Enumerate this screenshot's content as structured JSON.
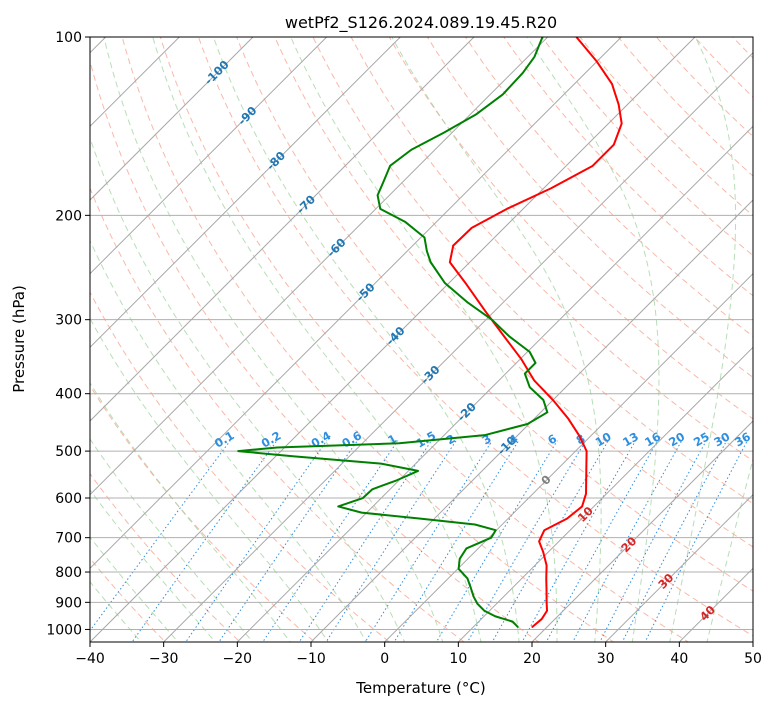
{
  "chart_data": {
    "type": "line",
    "title": "wetPf2_S126.2024.089.19.45.R20",
    "xlabel": "Temperature (°C)",
    "ylabel": "Pressure (hPa)",
    "xlim": [
      -40,
      50
    ],
    "ylim": [
      1050,
      100
    ],
    "y_scale": "log",
    "skew_deg": 45,
    "grid": true,
    "x_ticks": [
      -40,
      -30,
      -20,
      -10,
      0,
      10,
      20,
      30,
      40,
      50
    ],
    "y_ticks": [
      100,
      200,
      300,
      400,
      500,
      600,
      700,
      800,
      900,
      1000
    ],
    "isotherm_labels": [
      {
        "value": -100,
        "label": "-100",
        "p": 115
      },
      {
        "value": -90,
        "label": "-90",
        "p": 136
      },
      {
        "value": -80,
        "label": "-80",
        "p": 162
      },
      {
        "value": -70,
        "label": "-70",
        "p": 192
      },
      {
        "value": -60,
        "label": "-60",
        "p": 227
      },
      {
        "value": -50,
        "label": "-50",
        "p": 270
      },
      {
        "value": -40,
        "label": "-40",
        "p": 320
      },
      {
        "value": -30,
        "label": "-30",
        "p": 372
      },
      {
        "value": -20,
        "label": "-20",
        "p": 430
      },
      {
        "value": -10,
        "label": "-10",
        "p": 490
      },
      {
        "value": 0,
        "label": "0",
        "p": 560
      },
      {
        "value": 10,
        "label": "10",
        "p": 640
      },
      {
        "value": 20,
        "label": "20",
        "p": 720
      },
      {
        "value": 30,
        "label": "30",
        "p": 830
      },
      {
        "value": 40,
        "label": "40",
        "p": 940
      }
    ],
    "mixing_ratio_labels": [
      "0.1",
      "0.2",
      "0.4",
      "0.6",
      "1",
      "1.5",
      "2",
      "3",
      "4",
      "6",
      "8",
      "10",
      "13",
      "16",
      "20",
      "25",
      "30",
      "36"
    ],
    "mixing_ratio_label_pressure": 490,
    "series": [
      {
        "role": "temperature",
        "color": "#ff0000",
        "points": [
          {
            "p": 990,
            "t": 18.0
          },
          {
            "p": 960,
            "t": 18.2
          },
          {
            "p": 930,
            "t": 17.8
          },
          {
            "p": 900,
            "t": 16.6
          },
          {
            "p": 860,
            "t": 15.0
          },
          {
            "p": 820,
            "t": 13.3
          },
          {
            "p": 780,
            "t": 11.6
          },
          {
            "p": 740,
            "t": 9.3
          },
          {
            "p": 710,
            "t": 7.3
          },
          {
            "p": 680,
            "t": 6.5
          },
          {
            "p": 650,
            "t": 8.0
          },
          {
            "p": 620,
            "t": 8.4
          },
          {
            "p": 590,
            "t": 7.2
          },
          {
            "p": 560,
            "t": 5.4
          },
          {
            "p": 530,
            "t": 3.5
          },
          {
            "p": 500,
            "t": 1.5
          },
          {
            "p": 470,
            "t": -1.7
          },
          {
            "p": 440,
            "t": -5.5
          },
          {
            "p": 410,
            "t": -10.0
          },
          {
            "p": 380,
            "t": -15.2
          },
          {
            "p": 350,
            "t": -19.8
          },
          {
            "p": 320,
            "t": -25.3
          },
          {
            "p": 290,
            "t": -31.3
          },
          {
            "p": 260,
            "t": -37.8
          },
          {
            "p": 240,
            "t": -42.7
          },
          {
            "p": 225,
            "t": -44.5
          },
          {
            "p": 210,
            "t": -44.4
          },
          {
            "p": 195,
            "t": -42.2
          },
          {
            "p": 180,
            "t": -39.0
          },
          {
            "p": 165,
            "t": -36.4
          },
          {
            "p": 152,
            "t": -36.4
          },
          {
            "p": 140,
            "t": -38.2
          },
          {
            "p": 130,
            "t": -41.2
          },
          {
            "p": 120,
            "t": -44.9
          },
          {
            "p": 110,
            "t": -50.0
          },
          {
            "p": 100,
            "t": -56.1
          }
        ]
      },
      {
        "role": "dewpoint",
        "color": "#008000",
        "points": [
          {
            "p": 990,
            "t": 16.0
          },
          {
            "p": 970,
            "t": 14.6
          },
          {
            "p": 950,
            "t": 11.5
          },
          {
            "p": 930,
            "t": 9.3
          },
          {
            "p": 905,
            "t": 7.4
          },
          {
            "p": 880,
            "t": 5.9
          },
          {
            "p": 850,
            "t": 4.3
          },
          {
            "p": 820,
            "t": 2.6
          },
          {
            "p": 790,
            "t": 0.1
          },
          {
            "p": 760,
            "t": -1.1
          },
          {
            "p": 730,
            "t": -1.6
          },
          {
            "p": 700,
            "t": 0.3
          },
          {
            "p": 680,
            "t": -0.1
          },
          {
            "p": 665,
            "t": -3.7
          },
          {
            "p": 650,
            "t": -11.9
          },
          {
            "p": 635,
            "t": -20.7
          },
          {
            "p": 620,
            "t": -24.7
          },
          {
            "p": 600,
            "t": -22.5
          },
          {
            "p": 580,
            "t": -22.4
          },
          {
            "p": 560,
            "t": -20.3
          },
          {
            "p": 540,
            "t": -18.7
          },
          {
            "p": 525,
            "t": -24.7
          },
          {
            "p": 510,
            "t": -37.7
          },
          {
            "p": 500,
            "t": -45.8
          },
          {
            "p": 493,
            "t": -41.0
          },
          {
            "p": 485,
            "t": -25.0
          },
          {
            "p": 470,
            "t": -14.5
          },
          {
            "p": 450,
            "t": -10.2
          },
          {
            "p": 430,
            "t": -9.1
          },
          {
            "p": 410,
            "t": -11.3
          },
          {
            "p": 390,
            "t": -14.9
          },
          {
            "p": 370,
            "t": -17.4
          },
          {
            "p": 355,
            "t": -17.4
          },
          {
            "p": 340,
            "t": -19.7
          },
          {
            "p": 320,
            "t": -24.6
          },
          {
            "p": 300,
            "t": -29.2
          },
          {
            "p": 280,
            "t": -35.0
          },
          {
            "p": 260,
            "t": -40.6
          },
          {
            "p": 240,
            "t": -45.3
          },
          {
            "p": 230,
            "t": -47.3
          },
          {
            "p": 218,
            "t": -49.5
          },
          {
            "p": 205,
            "t": -54.3
          },
          {
            "p": 195,
            "t": -59.4
          },
          {
            "p": 185,
            "t": -61.6
          },
          {
            "p": 175,
            "t": -62.7
          },
          {
            "p": 165,
            "t": -63.9
          },
          {
            "p": 155,
            "t": -63.2
          },
          {
            "p": 145,
            "t": -61.1
          },
          {
            "p": 135,
            "t": -59.2
          },
          {
            "p": 125,
            "t": -58.3
          },
          {
            "p": 115,
            "t": -58.5
          },
          {
            "p": 108,
            "t": -59.1
          },
          {
            "p": 100,
            "t": -60.7
          }
        ]
      }
    ]
  }
}
